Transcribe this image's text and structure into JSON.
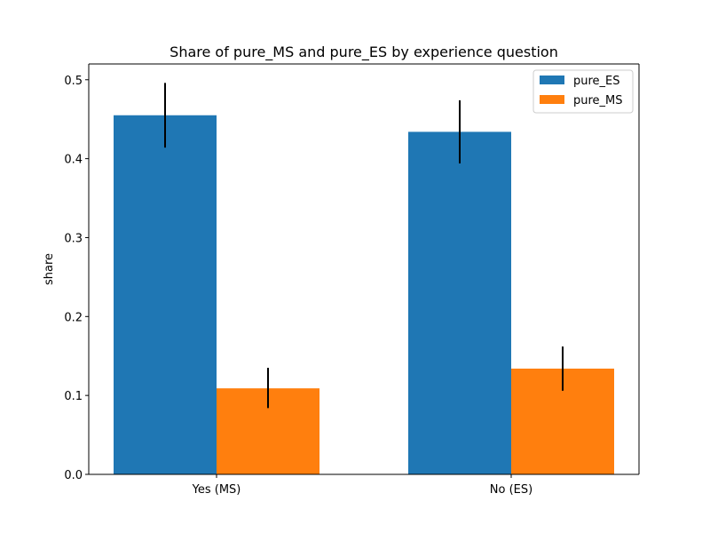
{
  "chart_data": {
    "type": "bar",
    "title": "Share of pure_MS and pure_ES by experience question",
    "xlabel": "",
    "ylabel": "share",
    "categories": [
      "Yes (MS)",
      "No (ES)"
    ],
    "ylim": [
      0,
      0.52
    ],
    "yticks": [
      "0.0",
      "0.1",
      "0.2",
      "0.3",
      "0.4",
      "0.5"
    ],
    "grid": false,
    "legend_position": "top-right",
    "series": [
      {
        "name": "pure_ES",
        "color": "#1f77b4",
        "values": [
          0.455,
          0.434
        ],
        "error_low": [
          0.414,
          0.394
        ],
        "error_high": [
          0.496,
          0.474
        ]
      },
      {
        "name": "pure_MS",
        "color": "#ff7f0e",
        "values": [
          0.109,
          0.134
        ],
        "error_low": [
          0.084,
          0.106
        ],
        "error_high": [
          0.135,
          0.162
        ]
      }
    ]
  }
}
